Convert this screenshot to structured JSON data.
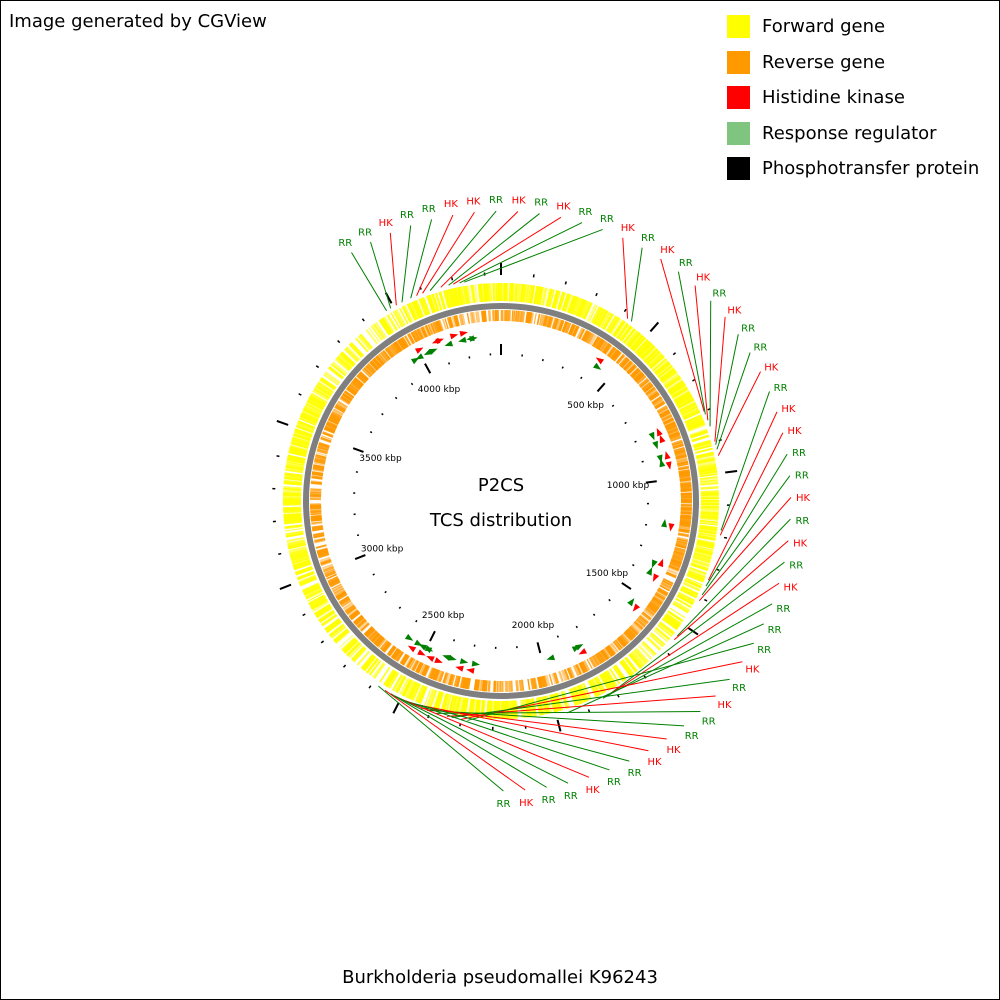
{
  "credit": "Image generated by CGView",
  "organism": "Burkholderia pseudomallei K96243",
  "center": {
    "title": "P2CS",
    "subtitle": "TCS distribution"
  },
  "legend": [
    {
      "label": "Forward gene",
      "color": "#ffff00"
    },
    {
      "label": "Reverse gene",
      "color": "#ff9900"
    },
    {
      "label": "Histidine kinase",
      "color": "#ff0000"
    },
    {
      "label": "Response regulator",
      "color": "#7fc47f"
    },
    {
      "label": "Phosphotransfer protein",
      "color": "#000000"
    }
  ],
  "colors": {
    "hk": "#ff0000",
    "rr": "#008000",
    "rr_arrow": "#008000",
    "forward": "#ffff00",
    "reverse": "#ff9900",
    "backbone": "#7f7f7f",
    "tick": "#000000"
  },
  "scale": {
    "unit": "kbp",
    "genome_kbp": 4350,
    "labels": [
      {
        "text": "500 kbp",
        "kbp": 500
      },
      {
        "text": "1000 kbp",
        "kbp": 1000
      },
      {
        "text": "1500 kbp",
        "kbp": 1500
      },
      {
        "text": "2000 kbp",
        "kbp": 2000
      },
      {
        "text": "2500 kbp",
        "kbp": 2500
      },
      {
        "text": "3000 kbp",
        "kbp": 3000
      },
      {
        "text": "3500 kbp",
        "kbp": 3500
      },
      {
        "text": "4000 kbp",
        "kbp": 4000
      }
    ]
  },
  "features": [
    {
      "kbp": 3975,
      "type": "RR"
    },
    {
      "kbp": 3990,
      "type": "RR"
    },
    {
      "kbp": 4010,
      "type": "HK"
    },
    {
      "kbp": 4030,
      "type": "RR"
    },
    {
      "kbp": 4060,
      "type": "RR"
    },
    {
      "kbp": 4080,
      "type": "HK"
    },
    {
      "kbp": 4100,
      "type": "HK"
    },
    {
      "kbp": 4125,
      "type": "RR"
    },
    {
      "kbp": 4160,
      "type": "HK"
    },
    {
      "kbp": 4185,
      "type": "RR"
    },
    {
      "kbp": 4200,
      "type": "HK"
    },
    {
      "kbp": 4220,
      "type": "RR"
    },
    {
      "kbp": 4235,
      "type": "RR"
    },
    {
      "kbp": 420,
      "type": "HK"
    },
    {
      "kbp": 435,
      "type": "RR"
    },
    {
      "kbp": 800,
      "type": "HK"
    },
    {
      "kbp": 810,
      "type": "RR"
    },
    {
      "kbp": 830,
      "type": "HK"
    },
    {
      "kbp": 850,
      "type": "RR"
    },
    {
      "kbp": 900,
      "type": "HK"
    },
    {
      "kbp": 910,
      "type": "RR"
    },
    {
      "kbp": 925,
      "type": "RR"
    },
    {
      "kbp": 945,
      "type": "HK"
    },
    {
      "kbp": 1180,
      "type": "RR"
    },
    {
      "kbp": 1195,
      "type": "HK"
    },
    {
      "kbp": 1340,
      "type": "HK"
    },
    {
      "kbp": 1360,
      "type": "RR"
    },
    {
      "kbp": 1390,
      "type": "RR"
    },
    {
      "kbp": 1410,
      "type": "HK"
    },
    {
      "kbp": 1540,
      "type": "RR"
    },
    {
      "kbp": 1555,
      "type": "HK"
    },
    {
      "kbp": 1830,
      "type": "RR"
    },
    {
      "kbp": 1835,
      "type": "HK"
    },
    {
      "kbp": 1845,
      "type": "RR"
    },
    {
      "kbp": 1965,
      "type": "RR"
    },
    {
      "kbp": 2280,
      "type": "RR"
    },
    {
      "kbp": 2300,
      "type": "HK"
    },
    {
      "kbp": 2330,
      "type": "RR"
    },
    {
      "kbp": 2345,
      "type": "HK"
    },
    {
      "kbp": 2380,
      "type": "RR"
    },
    {
      "kbp": 2410,
      "type": "RR"
    },
    {
      "kbp": 2430,
      "type": "HK"
    },
    {
      "kbp": 2470,
      "type": "HK"
    },
    {
      "kbp": 2485,
      "type": "RR"
    },
    {
      "kbp": 2495,
      "type": "RR"
    },
    {
      "kbp": 2505,
      "type": "HK"
    },
    {
      "kbp": 2520,
      "type": "RR"
    },
    {
      "kbp": 2535,
      "type": "RR"
    },
    {
      "kbp": 2555,
      "type": "HK"
    },
    {
      "kbp": 2580,
      "type": "RR"
    }
  ]
}
